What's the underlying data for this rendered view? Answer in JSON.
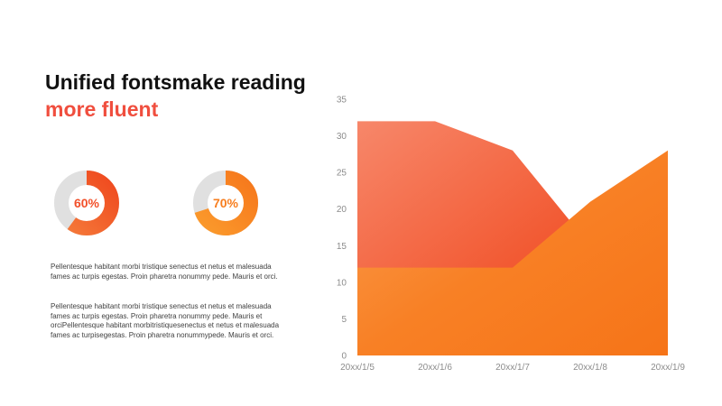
{
  "slide": {
    "title_line1": "Unified fontsmake reading",
    "title_line2": "more fluent",
    "title_color": "#111111",
    "accent_color": "#f04e3e"
  },
  "donuts": [
    {
      "label": "60%",
      "value": 0.6,
      "color": "#f2502a",
      "track_color": "#e0e0e0"
    },
    {
      "label": "70%",
      "value": 0.7,
      "color": "#f77e1f",
      "track_color": "#e0e0e0"
    }
  ],
  "paragraphs": [
    "Pellentesque  habitant morbi tristique senectus et netus et malesuada\nfames ac turpis egestas.  Proin pharetra nonummy pede.  Mauris et orci.",
    "Pellentesque  habitant morbi tristique senectus et netus et malesuada\nfames ac turpis egestas.  Proin pharetra nonummy pede.  Mauris et\norciPellentesque  habitant morbitristiquesenectus  et netus et malesuada\nfames ac turpisegestas.  Proin pharetra nonummypede.  Mauris et orci."
  ],
  "chart_data": {
    "type": "area",
    "categories": [
      "20xx/1/5",
      "20xx/1/6",
      "20xx/1/7",
      "20xx/1/8",
      "20xx/1/9"
    ],
    "series": [
      {
        "values": [
          32,
          32,
          28,
          15,
          3
        ],
        "color": "#f2502a"
      },
      {
        "values": [
          12,
          12,
          12,
          21,
          28
        ],
        "color": "#f77e1f"
      }
    ],
    "ylim": [
      0,
      35
    ],
    "yticks": [
      0,
      5,
      10,
      15,
      20,
      25,
      30,
      35
    ],
    "grid": false,
    "title": "",
    "xlabel": "",
    "ylabel": ""
  }
}
